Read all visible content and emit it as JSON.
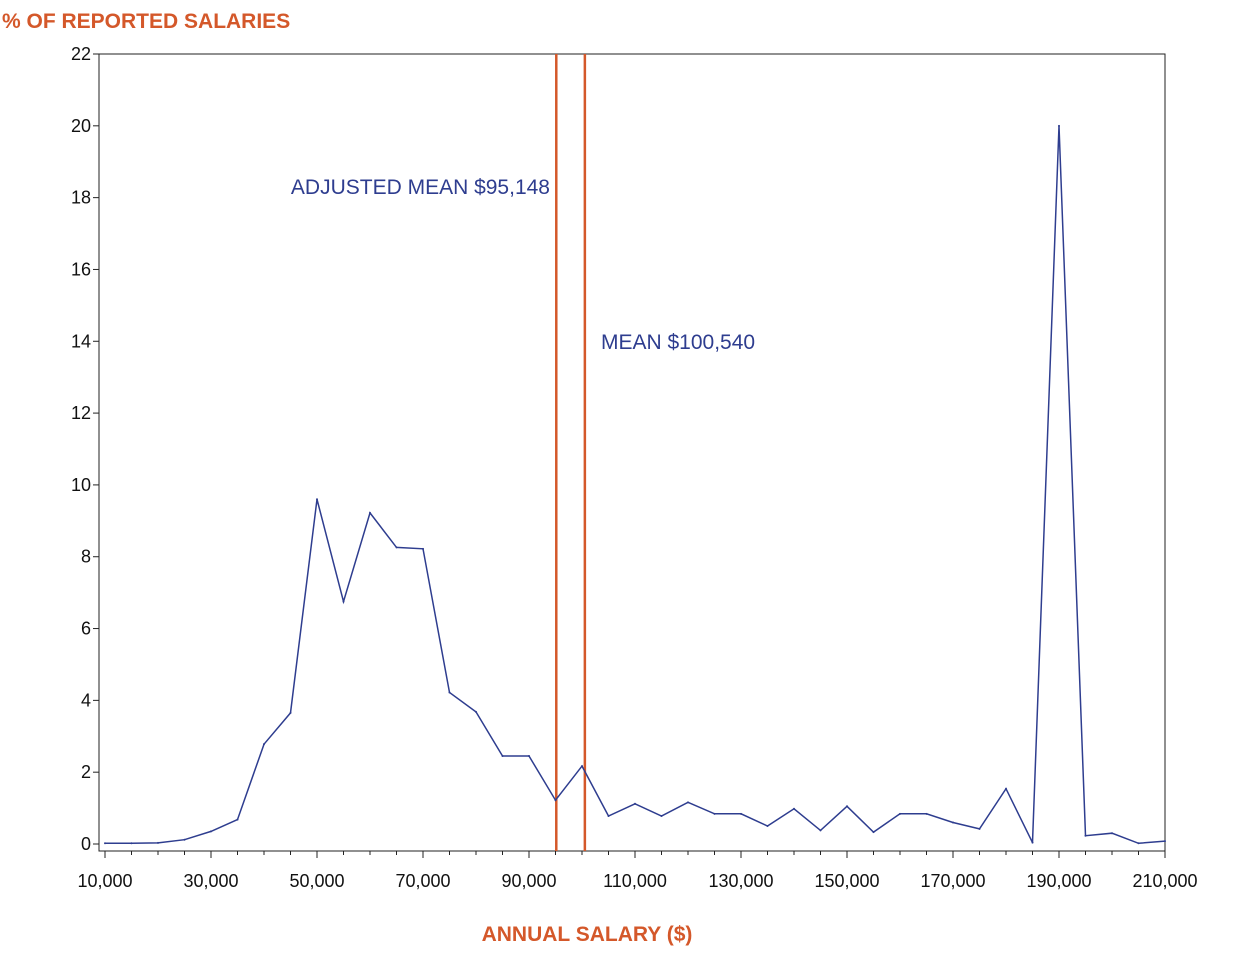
{
  "chart_data": {
    "type": "line",
    "ylabel": "% OF REPORTED SALARIES",
    "xlabel": "ANNUAL SALARY ($)",
    "xlim": [
      10000,
      210000
    ],
    "ylim": [
      0,
      22
    ],
    "xticks": [
      10000,
      30000,
      50000,
      70000,
      90000,
      110000,
      130000,
      150000,
      170000,
      190000,
      210000
    ],
    "xtick_labels": [
      "10,000",
      "30,000",
      "50,000",
      "70,000",
      "90,000",
      "110,000",
      "130,000",
      "150,000",
      "170,000",
      "190,000",
      "210,000"
    ],
    "yticks": [
      0,
      2,
      4,
      6,
      8,
      10,
      12,
      14,
      16,
      18,
      20,
      22
    ],
    "ytick_labels": [
      "0",
      "2",
      "4",
      "6",
      "8",
      "10",
      "12",
      "14",
      "16",
      "18",
      "20",
      "22"
    ],
    "grid": false,
    "x": [
      10000,
      15000,
      20000,
      25000,
      30000,
      35000,
      40000,
      45000,
      50000,
      55000,
      60000,
      65000,
      70000,
      75000,
      80000,
      85000,
      90000,
      95000,
      100000,
      105000,
      110000,
      115000,
      120000,
      125000,
      130000,
      135000,
      140000,
      145000,
      150000,
      155000,
      160000,
      165000,
      170000,
      175000,
      180000,
      185000,
      190000,
      195000,
      200000,
      205000,
      210000
    ],
    "series": [
      {
        "values": [
          0.02,
          0.02,
          0.03,
          0.12,
          0.35,
          0.68,
          2.78,
          3.65,
          9.6,
          6.75,
          9.22,
          8.26,
          8.22,
          4.22,
          3.68,
          2.45,
          2.45,
          1.22,
          2.17,
          0.78,
          1.12,
          0.78,
          1.16,
          0.84,
          0.84,
          0.5,
          0.98,
          0.38,
          1.05,
          0.33,
          0.84,
          0.84,
          0.6,
          0.42,
          1.54,
          0.04,
          20.0,
          0.23,
          0.3,
          0.02,
          0.08
        ],
        "color": "#2e3d8f"
      }
    ],
    "reference_lines": [
      {
        "label": "ADJUSTED MEAN $95,148",
        "x": 95148
      },
      {
        "label": "MEAN $100,540",
        "x": 100540
      }
    ],
    "colors": {
      "accent": "#d4582a",
      "series": "#2e3d8f",
      "annotation": "#2e3d8f",
      "axis": "#222222"
    }
  }
}
